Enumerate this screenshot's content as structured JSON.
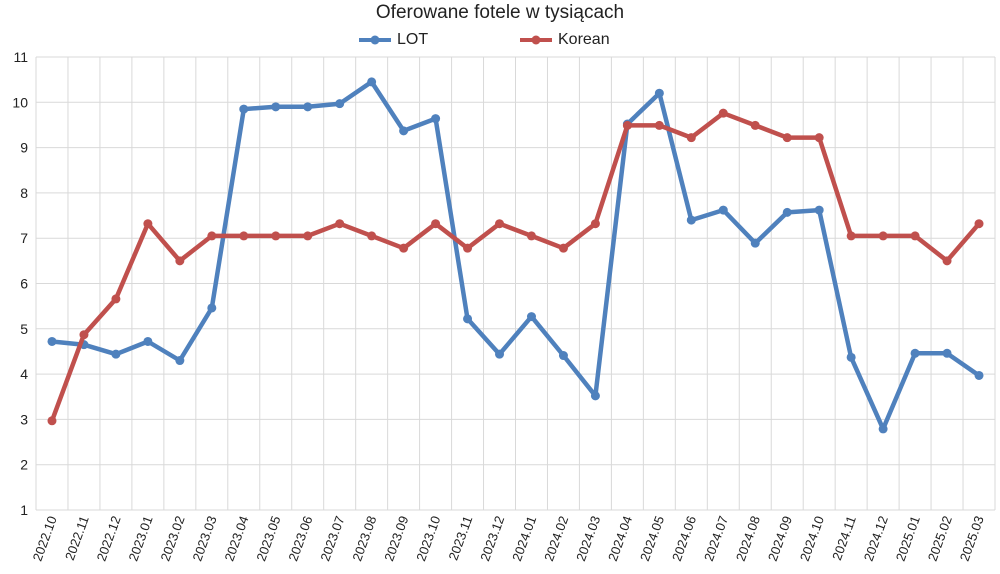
{
  "chart_data": {
    "type": "line",
    "title": "Oferowane fotele w tysiącach",
    "categories": [
      "2022.10",
      "2022.11",
      "2022.12",
      "2023.01",
      "2023.02",
      "2023.03",
      "2023.04",
      "2023.05",
      "2023.06",
      "2023.07",
      "2023.08",
      "2023.09",
      "2023.10",
      "2023.11",
      "2023.12",
      "2024.01",
      "2024.02",
      "2024.03",
      "2024.04",
      "2024.05",
      "2024.06",
      "2024.07",
      "2024.08",
      "2024.09",
      "2024.10",
      "2024.11",
      "2024.12",
      "2025.01",
      "2025.02",
      "2025.03"
    ],
    "series": [
      {
        "name": "LOT",
        "color": "#4f81bd",
        "values": [
          4.72,
          4.65,
          4.44,
          4.72,
          4.3,
          5.46,
          9.85,
          9.9,
          9.9,
          9.97,
          10.45,
          9.37,
          9.64,
          5.22,
          4.44,
          5.27,
          4.41,
          3.52,
          9.52,
          10.2,
          7.4,
          7.62,
          6.89,
          7.57,
          7.62,
          4.37,
          2.79,
          4.46,
          4.46,
          3.97
        ]
      },
      {
        "name": "Korean",
        "color": "#c0504d",
        "values": [
          2.97,
          4.87,
          5.66,
          7.32,
          6.5,
          7.05,
          7.05,
          7.05,
          7.05,
          7.32,
          7.05,
          6.78,
          7.32,
          6.78,
          7.32,
          7.05,
          6.78,
          7.32,
          9.49,
          9.49,
          9.22,
          9.76,
          9.49,
          9.22,
          9.22,
          7.05,
          7.05,
          7.05,
          6.5,
          7.32
        ]
      }
    ],
    "ylim": [
      1,
      11
    ],
    "yticks": [
      "1",
      "2",
      "3",
      "4",
      "5",
      "6",
      "7",
      "8",
      "9",
      "10",
      "11"
    ],
    "grid": true,
    "legend_position": "top-center",
    "xlabel": "",
    "ylabel": ""
  }
}
